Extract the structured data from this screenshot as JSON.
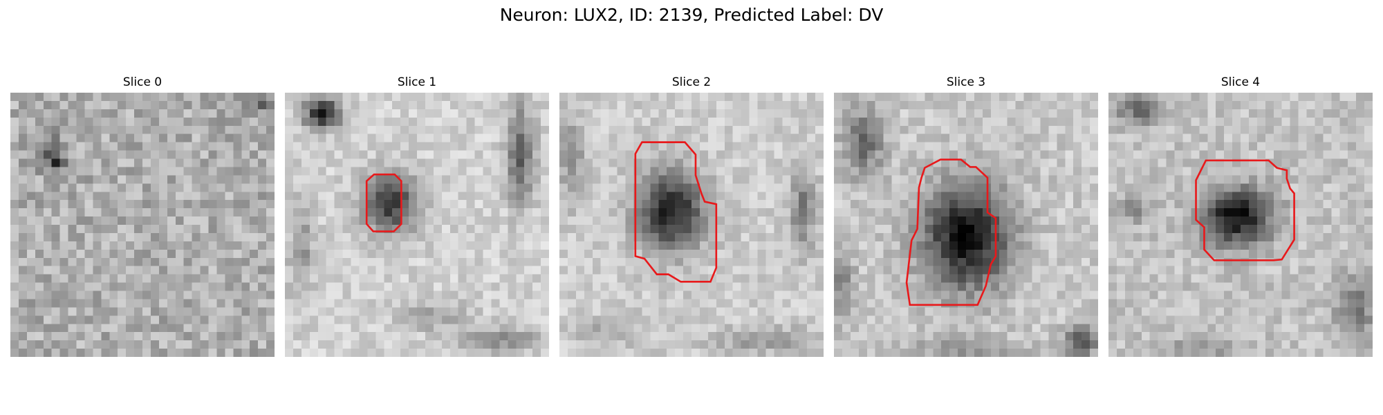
{
  "figure": {
    "title": "Neuron: LUX2, ID: 2139, Predicted Label: DV"
  },
  "panels": [
    {
      "title": "Slice 0"
    },
    {
      "title": "Slice 1"
    },
    {
      "title": "Slice 2"
    },
    {
      "title": "Slice 3"
    },
    {
      "title": "Slice 4"
    }
  ],
  "colors": {
    "contour": "#e8191b",
    "background": "#ffffff"
  }
}
